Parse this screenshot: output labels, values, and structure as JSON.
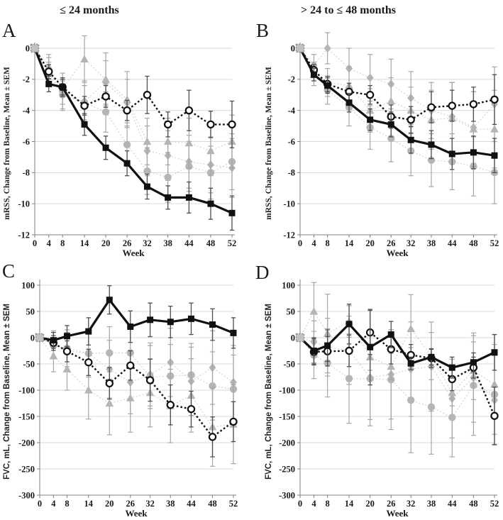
{
  "column_titles": {
    "left": "≤ 24 months",
    "right": "> 24 to ≤ 48 months"
  },
  "style": {
    "dark": "#111111",
    "gray_marker": "#b5b5b5",
    "gray_line": "#d6d6d6",
    "err_dark": "#4f4f4f",
    "err_gray": "#a6a6a6",
    "grid": "#d9d9d9",
    "axis": "#808080",
    "baseline_fill": "#c3c3c3",
    "baseline_stroke": "#8a8a8a",
    "background": "#ffffff"
  },
  "chart_data": [
    {
      "panel_label": "A",
      "type": "line",
      "title": "≤ 24 months",
      "xlabel": "Week",
      "ylabel": "mRSS, Change from Baseline, Mean ± SEM",
      "ylim": [
        -12,
        0
      ],
      "yticks": [
        0,
        -2,
        -4,
        -6,
        -8,
        -10,
        -12
      ],
      "x": [
        0,
        4,
        8,
        14,
        20,
        26,
        32,
        38,
        44,
        48,
        52
      ],
      "series": [
        {
          "name": "gray-diamonds",
          "marker": "diamond",
          "role": "gray",
          "values": [
            0,
            -1.4,
            -3.0,
            -3.4,
            -2.2,
            -3.5,
            -6.6,
            -6.9,
            -7.3,
            -7.5,
            -7.7
          ],
          "sem": [
            0,
            0.8,
            1.0,
            1.3,
            1.4,
            1.5,
            1.6,
            1.6,
            1.7,
            1.8,
            1.9
          ]
        },
        {
          "name": "gray-circles",
          "marker": "circle",
          "role": "gray",
          "values": [
            0,
            -1.6,
            -3.0,
            -3.5,
            -4.1,
            -6.2,
            -7.9,
            -8.3,
            -7.6,
            -8.0,
            -7.3
          ],
          "sem": [
            0,
            0.7,
            0.9,
            1.1,
            1.3,
            1.4,
            1.5,
            1.6,
            1.6,
            1.7,
            1.8
          ]
        },
        {
          "name": "gray-triangles",
          "marker": "triangle",
          "role": "gray",
          "values": [
            0,
            -1.2,
            -2.6,
            -0.7,
            -2.0,
            -3.3,
            -6.0,
            -6.0,
            -6.1,
            -6.6,
            -6.0
          ],
          "sem": [
            0,
            0.8,
            1.0,
            1.5,
            1.7,
            1.8,
            1.5,
            1.5,
            1.6,
            1.6,
            1.7
          ]
        },
        {
          "name": "open-circles-dotted",
          "marker": "open-circle",
          "role": "dark",
          "values": [
            0,
            -1.5,
            -2.5,
            -3.7,
            -3.1,
            -4.0,
            -3.0,
            -4.9,
            -4.0,
            -4.9,
            -4.9
          ],
          "sem": [
            0,
            0.45,
            0.5,
            0.6,
            0.7,
            0.65,
            1.2,
            0.8,
            1.3,
            0.85,
            1.5
          ]
        },
        {
          "name": "black-squares-solid",
          "marker": "square",
          "role": "dark",
          "values": [
            0,
            -2.3,
            -2.5,
            -4.9,
            -6.4,
            -7.4,
            -8.9,
            -9.6,
            -9.6,
            -10.0,
            -10.6
          ],
          "sem": [
            0,
            0.5,
            0.6,
            0.7,
            0.75,
            0.8,
            0.8,
            0.75,
            1.0,
            1.0,
            1.1
          ]
        }
      ]
    },
    {
      "panel_label": "B",
      "type": "line",
      "title": "> 24 to ≤ 48 months",
      "xlabel": "Week",
      "ylabel": "mRSS, Change from Baseline, Mean ± SEM",
      "ylim": [
        -12,
        0
      ],
      "yticks": [
        0,
        -2,
        -4,
        -6,
        -8,
        -10,
        -12
      ],
      "x": [
        0,
        4,
        8,
        14,
        20,
        26,
        32,
        38,
        44,
        48,
        52
      ],
      "series": [
        {
          "name": "gray-diamonds",
          "marker": "diamond",
          "role": "gray",
          "values": [
            0,
            -1.1,
            0.0,
            -1.3,
            -1.9,
            -2.3,
            -3.2,
            -4.0,
            -4.4,
            -5.1,
            -3.6
          ],
          "sem": [
            0,
            0.7,
            1.0,
            1.3,
            1.5,
            1.6,
            1.7,
            1.8,
            2.2,
            2.3,
            2.4
          ]
        },
        {
          "name": "gray-circles",
          "marker": "circle",
          "role": "gray",
          "values": [
            0,
            -1.5,
            -2.7,
            -3.8,
            -5.1,
            -5.8,
            -6.6,
            -7.2,
            -7.3,
            -7.6,
            -8.0
          ],
          "sem": [
            0,
            0.6,
            0.9,
            1.2,
            1.4,
            1.5,
            1.6,
            1.7,
            1.8,
            1.9,
            2.0
          ]
        },
        {
          "name": "gray-triangles",
          "marker": "triangle",
          "role": "gray",
          "values": [
            0,
            -1.7,
            -2.2,
            -2.4,
            -4.0,
            -3.4,
            -4.0,
            -4.6,
            -4.5,
            -5.2,
            -5.2
          ],
          "sem": [
            0,
            0.7,
            0.9,
            1.2,
            1.4,
            1.5,
            1.5,
            1.9,
            2.3,
            2.4,
            2.5
          ]
        },
        {
          "name": "open-circles-dotted",
          "marker": "open-circle",
          "role": "dark",
          "values": [
            0,
            -1.4,
            -2.3,
            -2.8,
            -3.0,
            -4.4,
            -4.6,
            -3.8,
            -3.7,
            -3.6,
            -3.3
          ],
          "sem": [
            0,
            0.35,
            0.5,
            0.55,
            0.6,
            0.75,
            0.85,
            1.0,
            1.0,
            1.1,
            1.6
          ]
        },
        {
          "name": "black-squares-solid",
          "marker": "square",
          "role": "dark",
          "values": [
            0,
            -1.7,
            -2.4,
            -3.5,
            -4.6,
            -4.9,
            -5.9,
            -6.2,
            -6.8,
            -6.7,
            -6.9
          ],
          "sem": [
            0,
            0.4,
            0.5,
            0.6,
            0.7,
            0.8,
            0.85,
            0.9,
            1.0,
            1.05,
            1.1
          ]
        }
      ]
    },
    {
      "panel_label": "C",
      "type": "line",
      "title": "≤ 24 months",
      "xlabel": "Week",
      "ylabel": "FVC, mL, Change from Baseline, Mean ± SEM",
      "ylim": [
        -300,
        100
      ],
      "yticks": [
        100,
        50,
        0,
        -50,
        -100,
        -150,
        -200,
        -250,
        -300
      ],
      "x": [
        0,
        4,
        8,
        14,
        20,
        26,
        32,
        38,
        44,
        48,
        52
      ],
      "series": [
        {
          "name": "gray-diamonds",
          "marker": "diamond",
          "role": "gray",
          "values": [
            0,
            -12,
            -25,
            -30,
            -60,
            -85,
            -70,
            -47,
            -83,
            -57,
            -85
          ],
          "sem": [
            0,
            25,
            35,
            45,
            55,
            60,
            60,
            65,
            65,
            70,
            70
          ]
        },
        {
          "name": "gray-circles",
          "marker": "circle",
          "role": "gray",
          "values": [
            0,
            -15,
            -20,
            -30,
            -29,
            -29,
            -75,
            -73,
            -71,
            -92,
            -98
          ],
          "sem": [
            0,
            25,
            35,
            45,
            50,
            55,
            60,
            60,
            60,
            65,
            65
          ]
        },
        {
          "name": "gray-triangles",
          "marker": "triangle",
          "role": "gray",
          "values": [
            0,
            -35,
            -60,
            -100,
            -125,
            -115,
            -105,
            -130,
            -110,
            -170,
            -165
          ],
          "sem": [
            0,
            30,
            40,
            55,
            60,
            65,
            65,
            70,
            70,
            75,
            75
          ]
        },
        {
          "name": "open-circles-dotted",
          "marker": "open-circle",
          "role": "dark",
          "values": [
            0,
            -10,
            -26,
            -47,
            -87,
            -53,
            -81,
            -128,
            -136,
            -189,
            -160
          ],
          "sem": [
            0,
            14,
            20,
            25,
            30,
            28,
            40,
            38,
            34,
            38,
            38
          ]
        },
        {
          "name": "black-squares-solid",
          "marker": "square",
          "role": "dark",
          "values": [
            0,
            -5,
            3,
            12,
            72,
            21,
            34,
            30,
            36,
            25,
            9
          ],
          "sem": [
            0,
            15,
            20,
            26,
            27,
            30,
            32,
            30,
            30,
            30,
            29
          ]
        }
      ]
    },
    {
      "panel_label": "D",
      "type": "line",
      "title": "> 24 to ≤ 48 months",
      "xlabel": "Week",
      "ylabel": "FVC, mL, Change from Baseline, Mean ± SEM",
      "ylim": [
        -300,
        100
      ],
      "yticks": [
        100,
        50,
        0,
        -50,
        -100,
        -150,
        -200,
        -250,
        -300
      ],
      "x": [
        0,
        4,
        8,
        14,
        20,
        26,
        32,
        38,
        44,
        48,
        52
      ],
      "series": [
        {
          "name": "gray-diamonds",
          "marker": "diamond",
          "role": "gray",
          "values": [
            0,
            -8,
            -18,
            -24,
            -76,
            -70,
            -60,
            -55,
            -116,
            -76,
            -119
          ],
          "sem": [
            0,
            40,
            55,
            65,
            80,
            85,
            90,
            85,
            75,
            85,
            85
          ]
        },
        {
          "name": "gray-circles",
          "marker": "circle",
          "role": "gray",
          "values": [
            0,
            -33,
            -48,
            -78,
            -78,
            -80,
            -119,
            -132,
            -152,
            -91,
            -108
          ],
          "sem": [
            0,
            45,
            65,
            85,
            90,
            95,
            100,
            90,
            75,
            95,
            95
          ]
        },
        {
          "name": "gray-triangles",
          "marker": "triangle",
          "role": "gray",
          "values": [
            0,
            50,
            8,
            31,
            -37,
            -55,
            17,
            -35,
            -105,
            -63,
            -89
          ],
          "sem": [
            0,
            55,
            75,
            30,
            25,
            25,
            65,
            45,
            25,
            55,
            95
          ]
        },
        {
          "name": "open-circles-dotted",
          "marker": "open-circle",
          "role": "dark",
          "values": [
            0,
            -27,
            -26,
            -25,
            10,
            -22,
            -33,
            -39,
            -79,
            -57,
            -149
          ],
          "sem": [
            0,
            25,
            28,
            30,
            42,
            28,
            20,
            18,
            22,
            20,
            55
          ]
        },
        {
          "name": "black-squares-solid",
          "marker": "square",
          "role": "dark",
          "values": [
            0,
            -25,
            -15,
            26,
            -18,
            6,
            -49,
            -37,
            -57,
            -47,
            -28
          ],
          "sem": [
            0,
            25,
            30,
            38,
            72,
            25,
            12,
            15,
            20,
            18,
            34
          ]
        }
      ]
    }
  ]
}
